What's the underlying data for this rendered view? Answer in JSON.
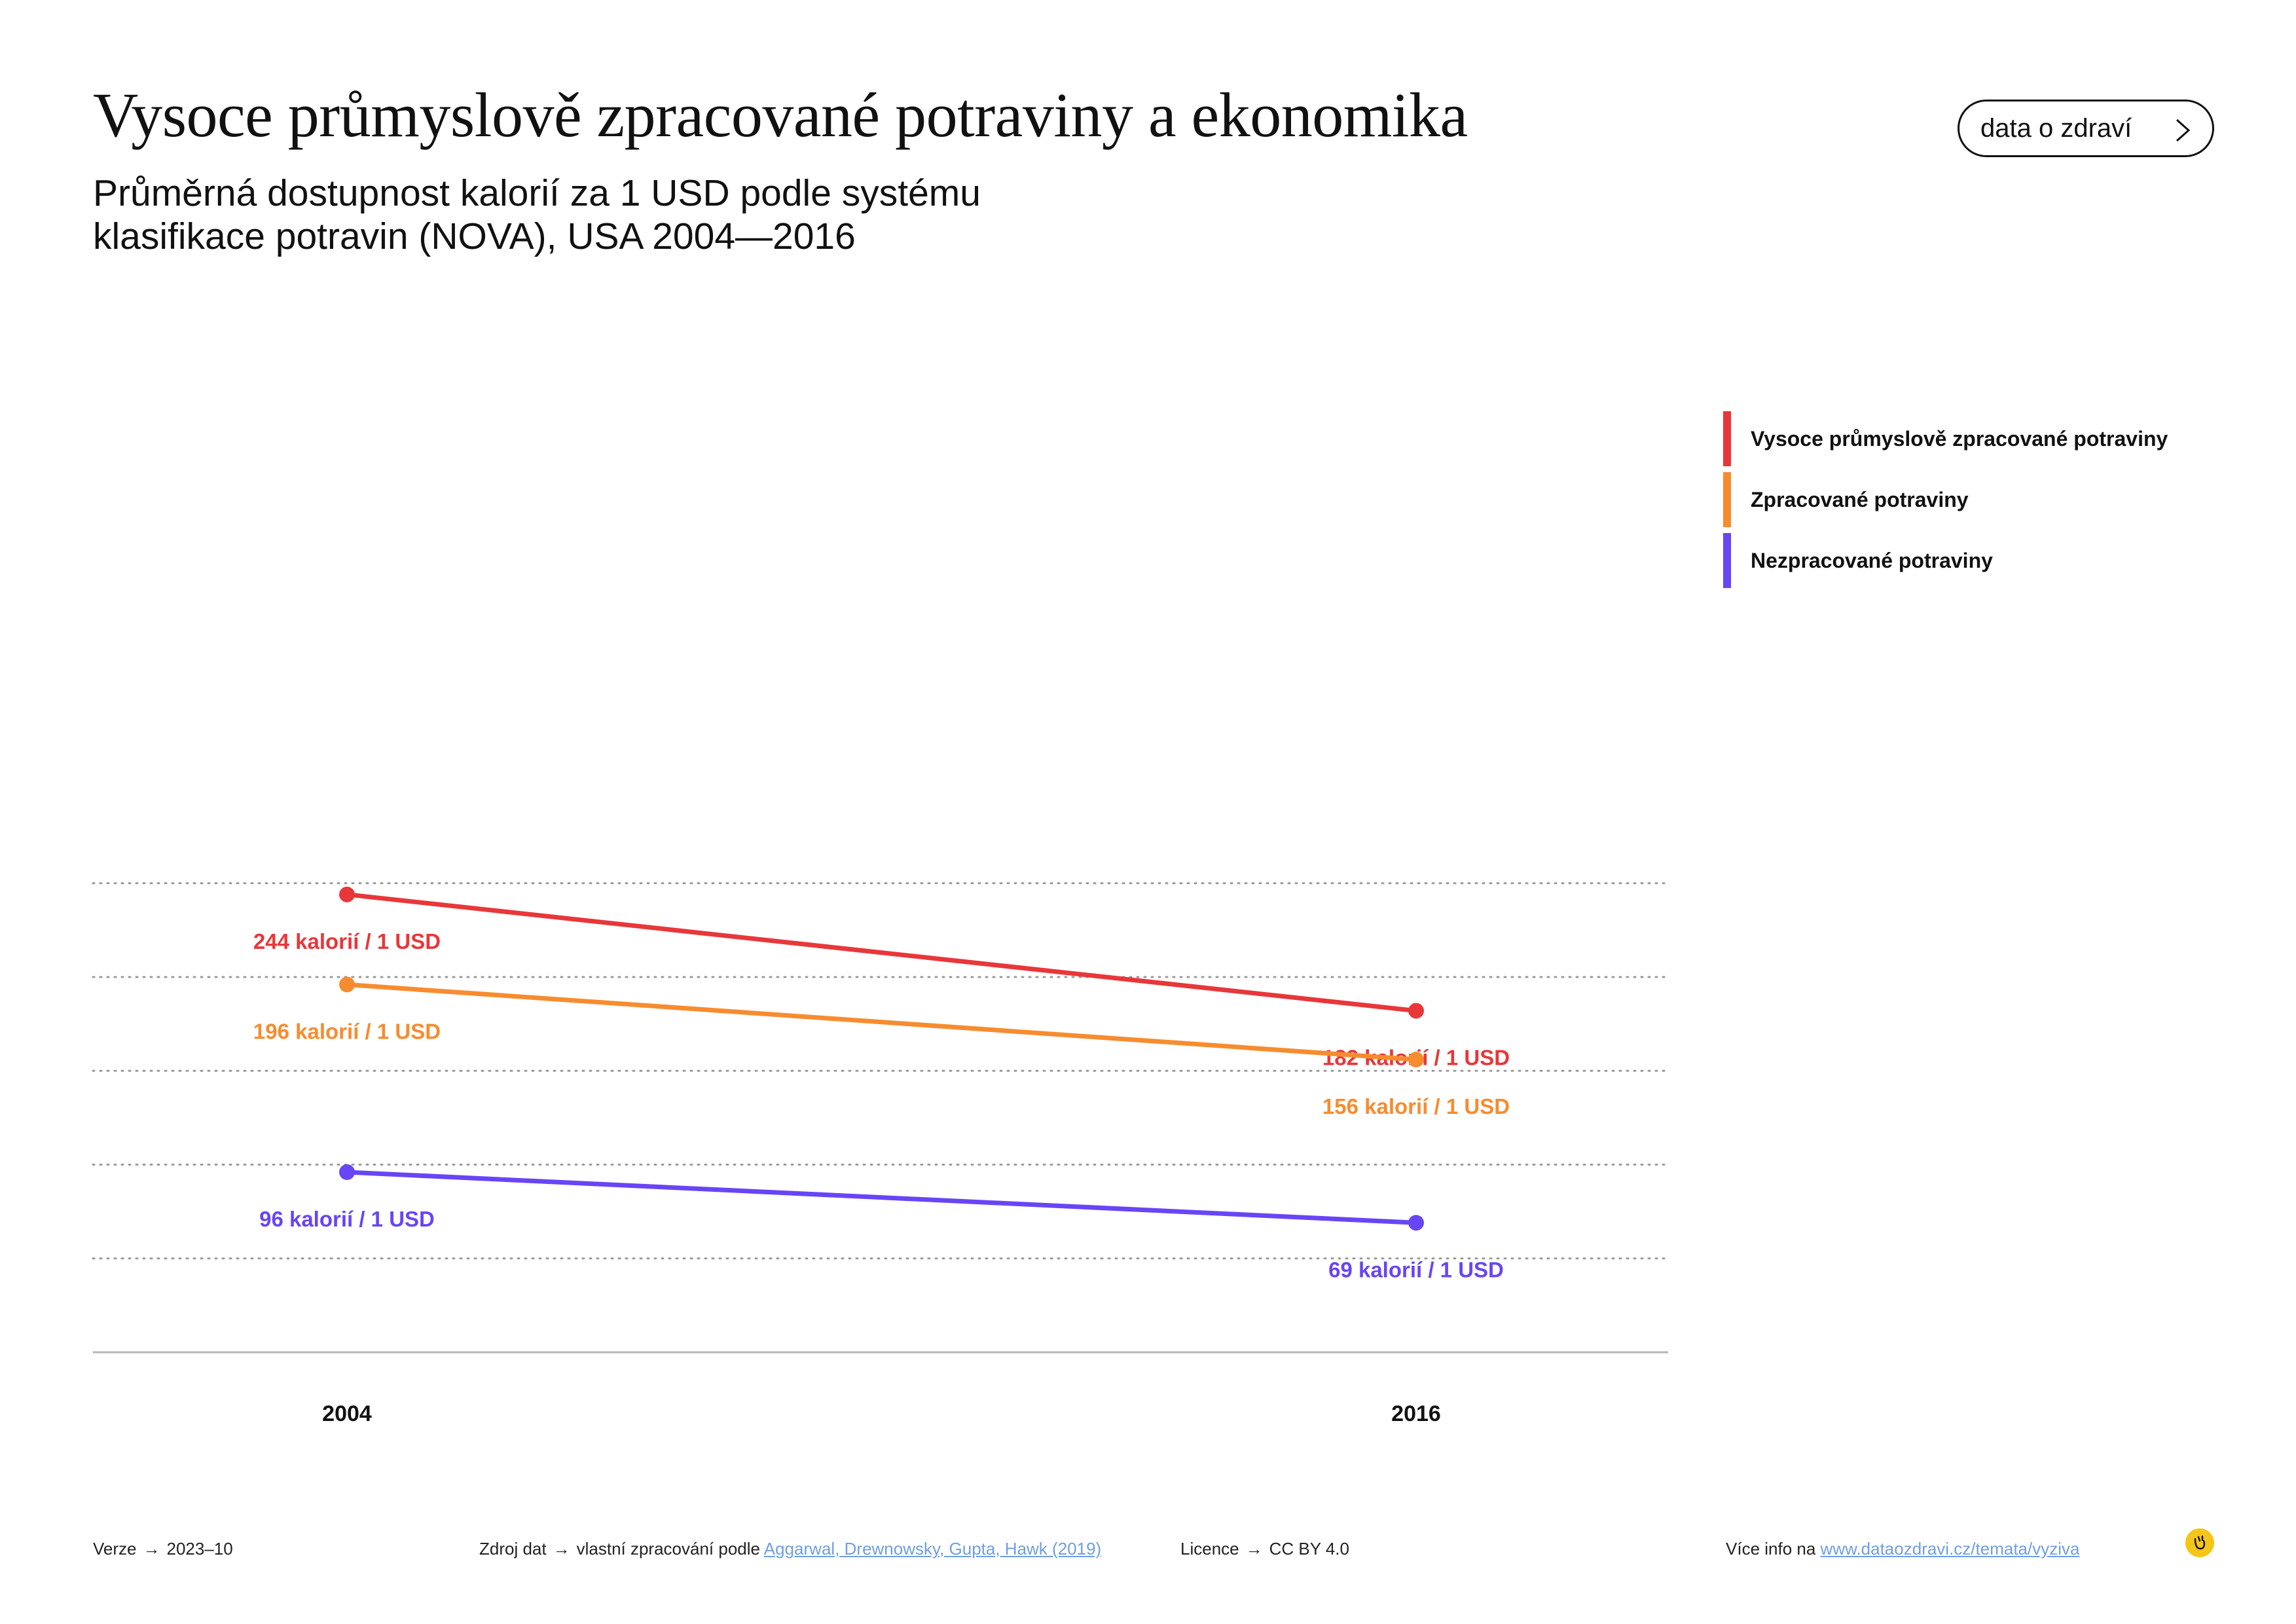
{
  "header": {
    "title": "Vysoce průmyslově zpracované potraviny a ekonomika",
    "subtitle_line1": "Průměrná dostupnost kalorií za 1 USD podle systému",
    "subtitle_line2": "klasifikace potravin (NOVA), USA 2004—2016",
    "topic_button": "data o zdraví"
  },
  "chart_data": {
    "type": "line",
    "x": [
      "2004",
      "2016"
    ],
    "ylim": [
      0,
      250
    ],
    "grid": true,
    "legend_position": "right",
    "series": [
      {
        "name": "Vysoce průmyslově zpracované potraviny",
        "color": "#e8373a",
        "values": [
          244,
          182
        ],
        "labels": [
          "244 kalorií / 1 USD",
          "182 kalorií / 1 USD"
        ]
      },
      {
        "name": "Zpracované potraviny",
        "color": "#f78c2f",
        "values": [
          196,
          156
        ],
        "labels": [
          "196 kalorií / 1 USD",
          "156 kalorií / 1 USD"
        ]
      },
      {
        "name": "Nezpracované potraviny",
        "color": "#6845f5",
        "values": [
          96,
          69
        ],
        "labels": [
          "96 kalorií / 1 USD",
          "69 kalorií / 1 USD"
        ]
      }
    ]
  },
  "footer": {
    "version_label": "Verze",
    "version_value": "2023–10",
    "source_label": "Zdroj dat",
    "source_text": "vlastní zpracování podle",
    "source_link": "Aggarwal, Drewnowsky, Gupta, Hawk (2019)",
    "license_label": "Licence",
    "license_value": "CC BY 4.0",
    "more_info_text": "Více info na",
    "more_info_link": "www.dataozdravi.cz/temata/vyziva"
  },
  "icons": {
    "arrow": "→",
    "button_icon": "chevron-right-icon",
    "logo": "logo-icon"
  }
}
